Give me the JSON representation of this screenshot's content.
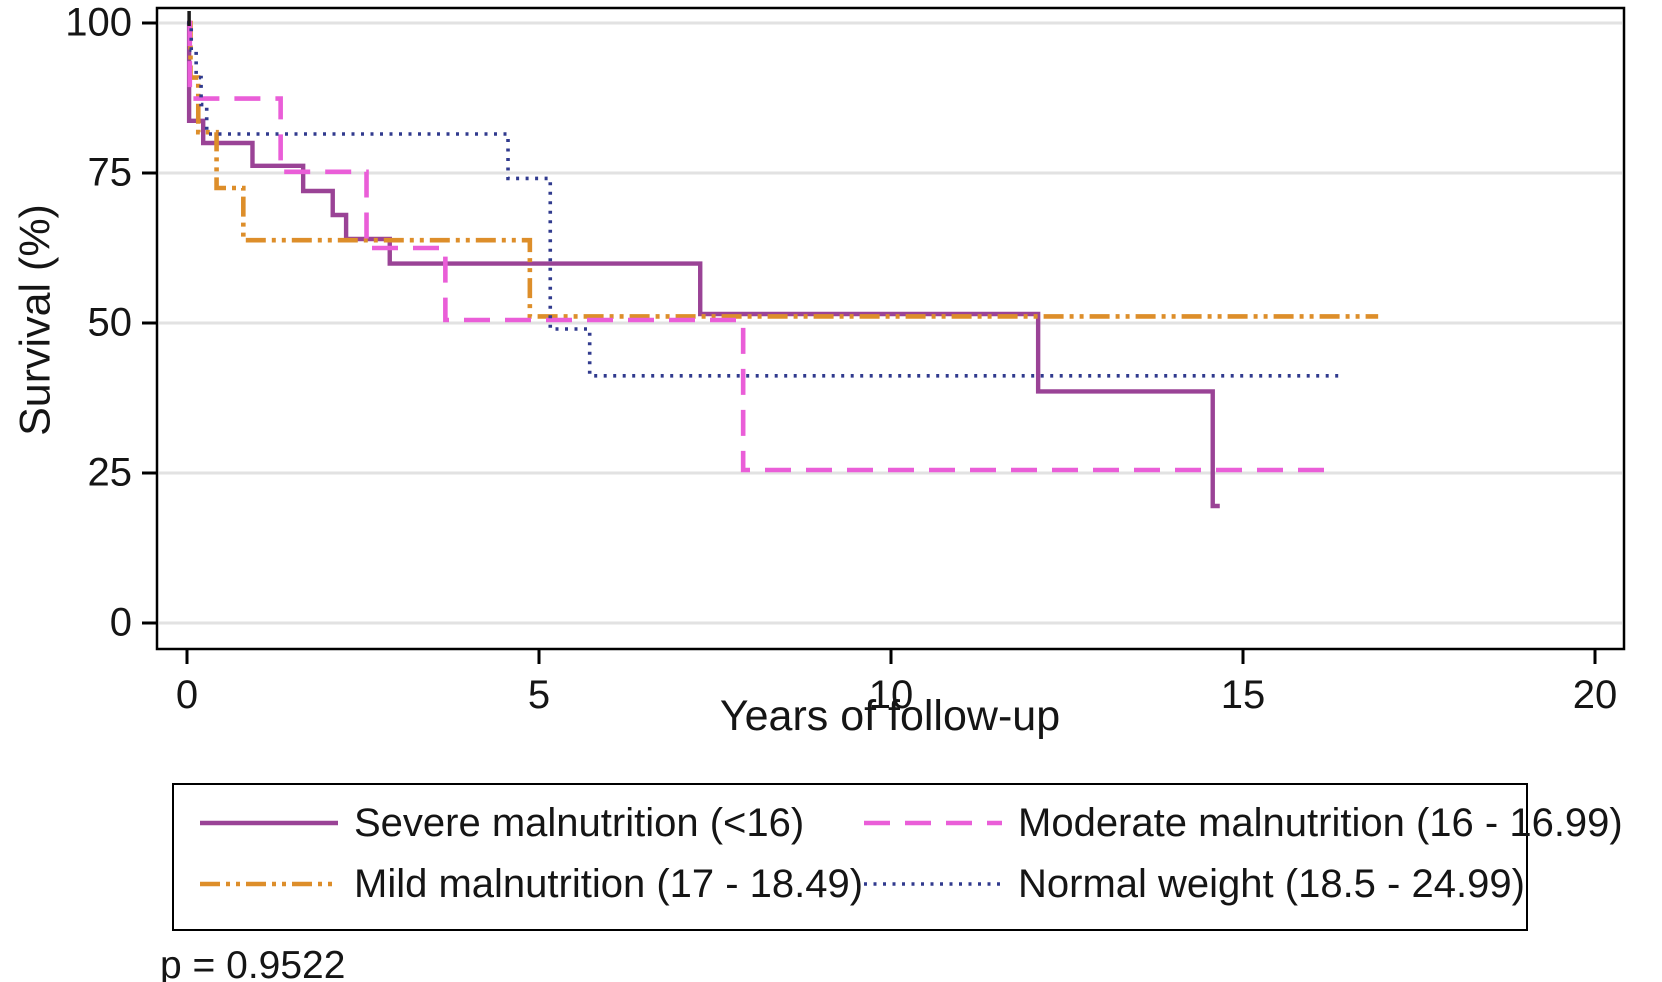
{
  "p_value": "p = 0.9522",
  "chart_data": {
    "type": "line",
    "subtype": "kaplan-meier-step",
    "title": "",
    "xlabel": "Years of follow-up",
    "ylabel": "Survival (%)",
    "xlim": [
      0,
      20
    ],
    "ylim": [
      0,
      100
    ],
    "x_ticks": [
      0,
      5,
      10,
      15,
      20
    ],
    "y_ticks": [
      0,
      25,
      50,
      75,
      100
    ],
    "grid": true,
    "legend_position": "bottom",
    "origin_marker": {
      "time": 0.03,
      "value": 100
    },
    "series": [
      {
        "name": "Severe malnutrition (<16)",
        "color": "#9a4396",
        "style": "solid",
        "width": 4.4,
        "steps": [
          [
            0,
            100
          ],
          [
            0.03,
            83.7
          ],
          [
            0.23,
            80.0
          ],
          [
            0.93,
            76.2
          ],
          [
            1.65,
            72.0
          ],
          [
            2.07,
            68.0
          ],
          [
            2.26,
            64.0
          ],
          [
            2.88,
            59.9
          ],
          [
            7.29,
            51.5
          ],
          [
            12.09,
            38.6
          ],
          [
            14.57,
            19.5
          ]
        ],
        "end_time": 14.67
      },
      {
        "name": "Mild malnutrition (17 - 18.49)",
        "color": "#dd8e2a",
        "style": "dash-dot-dot",
        "width": 4.6,
        "steps": [
          [
            0,
            100
          ],
          [
            0.05,
            90.9
          ],
          [
            0.16,
            81.8
          ],
          [
            0.42,
            72.5
          ],
          [
            0.8,
            63.8
          ],
          [
            4.87,
            51.1
          ]
        ],
        "end_time": 16.92
      },
      {
        "name": "Moderate malnutrition (16 - 16.99)",
        "color": "#ea5ed8",
        "style": "long-dash",
        "width": 4.6,
        "steps": [
          [
            0,
            100
          ],
          [
            0.04,
            87.4
          ],
          [
            1.33,
            75.2
          ],
          [
            2.55,
            62.5
          ],
          [
            3.67,
            50.5
          ],
          [
            7.9,
            25.5
          ]
        ],
        "end_time": 16.19
      },
      {
        "name": "Normal weight (18.5 - 24.99)",
        "color": "#303a8e",
        "style": "dotted",
        "width": 3.6,
        "steps": [
          [
            0,
            100
          ],
          [
            0.06,
            95.5
          ],
          [
            0.13,
            90.9
          ],
          [
            0.2,
            86.4
          ],
          [
            0.28,
            81.5
          ],
          [
            4.56,
            74.1
          ],
          [
            5.16,
            49.0
          ],
          [
            5.72,
            41.2
          ]
        ],
        "end_time": 16.38
      }
    ],
    "legend": [
      {
        "label": "Severe malnutrition (<16)",
        "series_index": 0
      },
      {
        "label": "Moderate malnutrition (16 - 16.99)",
        "series_index": 2
      },
      {
        "label": "Mild malnutrition (17 - 18.49)",
        "series_index": 1
      },
      {
        "label": "Normal weight (18.5 - 24.99)",
        "series_index": 3
      }
    ],
    "colors": {
      "severe": "#9a4396",
      "moderate": "#ea5ed8",
      "mild": "#dd8e2a",
      "normal": "#303a8e",
      "gridline": "#e2e2e2",
      "axis": "#000000"
    }
  }
}
